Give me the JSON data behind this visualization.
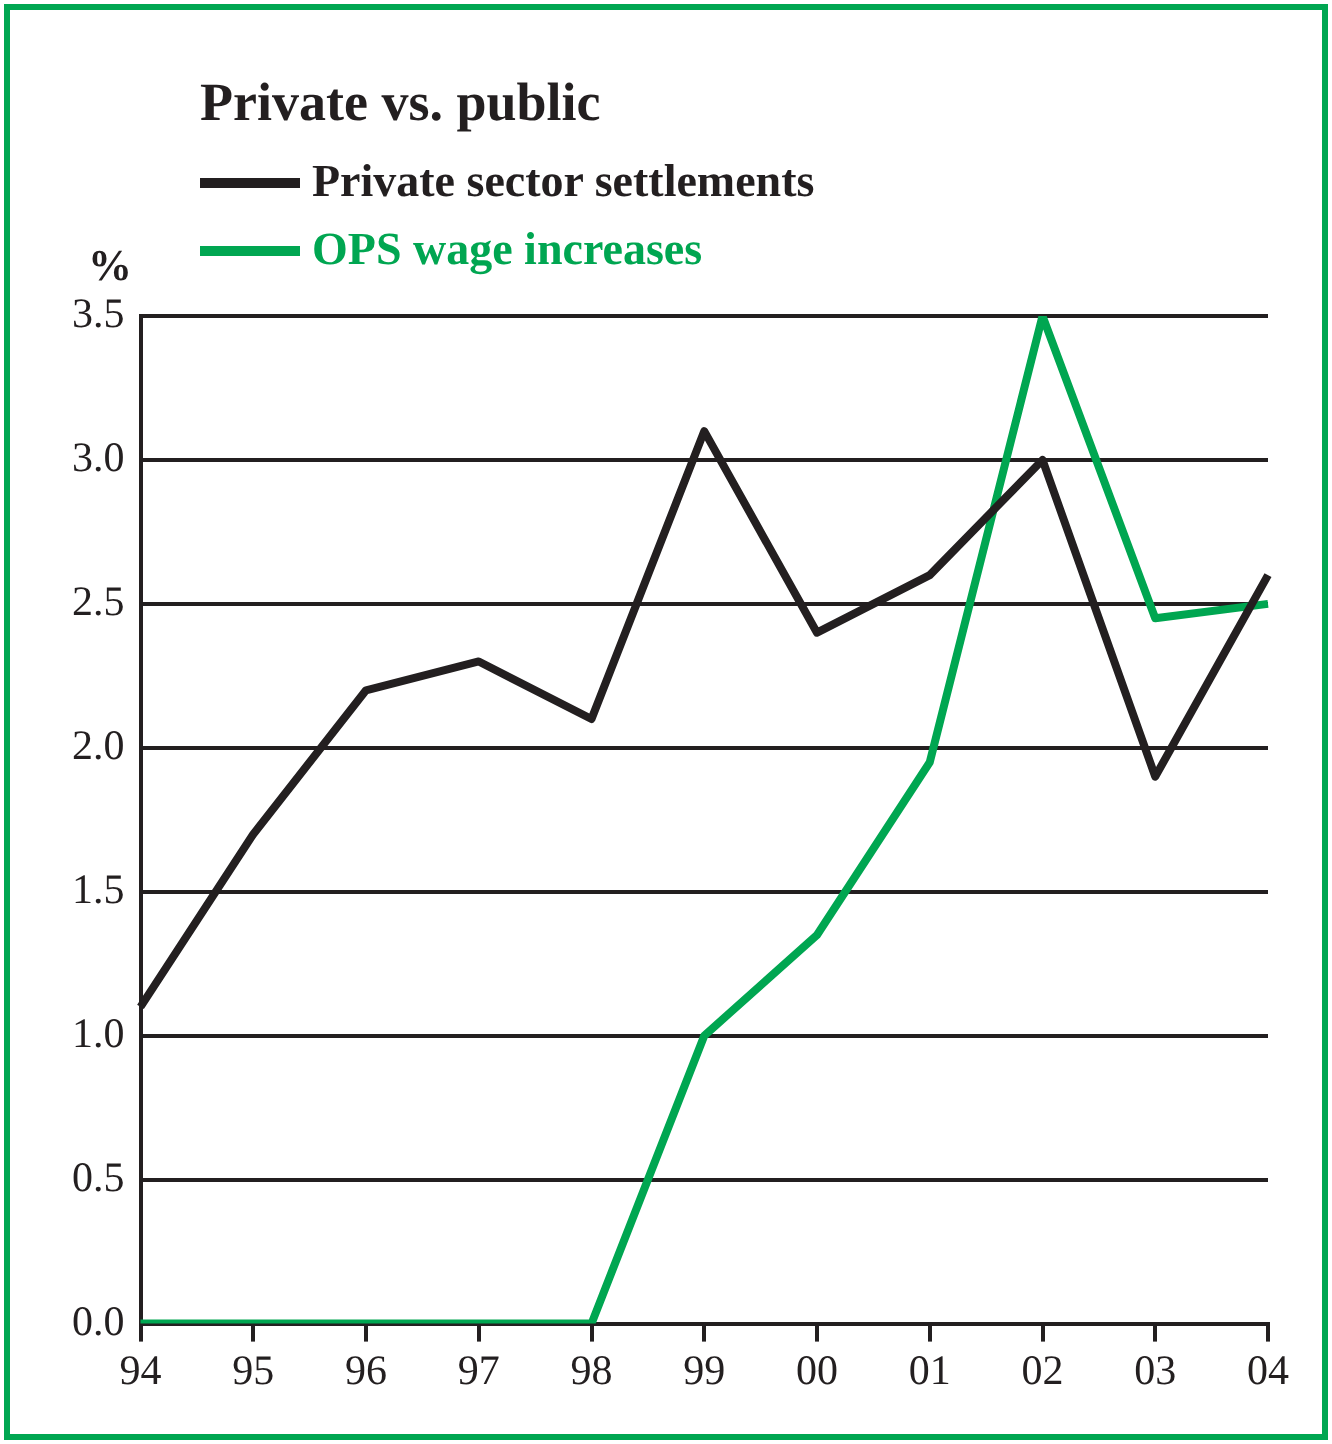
{
  "chart_data": {
    "type": "line",
    "title": "Private vs. public",
    "ylabel": "%",
    "categories": [
      "94",
      "95",
      "96",
      "97",
      "98",
      "99",
      "00",
      "01",
      "02",
      "03",
      "04"
    ],
    "series": [
      {
        "name": "Private sector settlements",
        "color": "#231f20",
        "values": [
          1.1,
          1.7,
          2.2,
          2.3,
          2.1,
          3.1,
          2.4,
          2.6,
          3.0,
          1.9,
          2.6
        ]
      },
      {
        "name": "OPS wage increases",
        "color": "#00a651",
        "values": [
          0,
          0,
          0,
          0,
          0,
          1.0,
          1.35,
          1.95,
          3.5,
          2.45,
          2.5
        ]
      }
    ],
    "ylim": [
      0,
      3.5
    ],
    "yticks": [
      {
        "value": 0,
        "label": "0.0"
      },
      0.5,
      {
        "value": 1,
        "label": "1.0"
      },
      1.5,
      {
        "value": 2,
        "label": "2.0"
      },
      2.5,
      {
        "value": 3,
        "label": "3.0"
      },
      3.5
    ],
    "grid": "y",
    "legend": "top left",
    "marker": "none",
    "line_style": "solid"
  }
}
